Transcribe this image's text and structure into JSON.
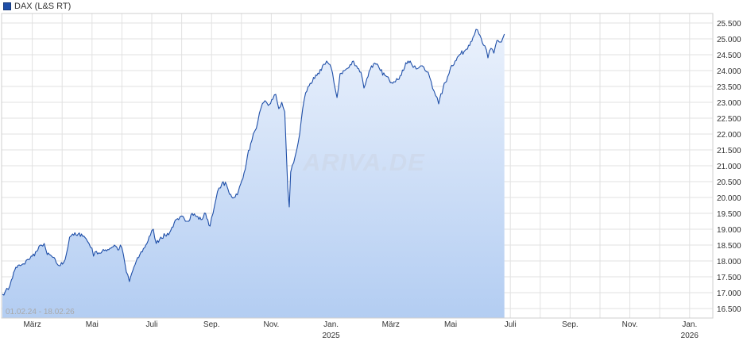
{
  "legend": {
    "label": "DAX (L&S RT)",
    "color": "#1f4fa8"
  },
  "range_text": "01.02.24 - 18.02.26",
  "watermark": "ARIVA.DE",
  "chart_data": {
    "type": "area",
    "series": [
      {
        "name": "DAX (L&S RT)",
        "color": "#1f4fa8",
        "points": [
          [
            0.0,
            16950
          ],
          [
            0.1,
            17050
          ],
          [
            0.2,
            17100
          ],
          [
            0.3,
            17400
          ],
          [
            0.45,
            17800
          ],
          [
            0.6,
            17850
          ],
          [
            0.75,
            17900
          ],
          [
            0.85,
            18050
          ],
          [
            1.0,
            18150
          ],
          [
            1.15,
            18300
          ],
          [
            1.3,
            18500
          ],
          [
            1.4,
            18550
          ],
          [
            1.5,
            18200
          ],
          [
            1.65,
            18150
          ],
          [
            1.8,
            17950
          ],
          [
            1.9,
            17850
          ],
          [
            2.05,
            17950
          ],
          [
            2.15,
            18250
          ],
          [
            2.25,
            18750
          ],
          [
            2.35,
            18850
          ],
          [
            2.5,
            18800
          ],
          [
            2.65,
            18850
          ],
          [
            2.8,
            18700
          ],
          [
            2.9,
            18550
          ],
          [
            3.0,
            18400
          ],
          [
            3.05,
            18150
          ],
          [
            3.15,
            18300
          ],
          [
            3.3,
            18250
          ],
          [
            3.45,
            18350
          ],
          [
            3.6,
            18400
          ],
          [
            3.75,
            18500
          ],
          [
            3.9,
            18350
          ],
          [
            3.95,
            18500
          ],
          [
            4.05,
            18200
          ],
          [
            4.15,
            17650
          ],
          [
            4.25,
            17350
          ],
          [
            4.4,
            17800
          ],
          [
            4.6,
            18200
          ],
          [
            4.8,
            18500
          ],
          [
            4.95,
            18800
          ],
          [
            5.05,
            19000
          ],
          [
            5.15,
            18550
          ],
          [
            5.3,
            18750
          ],
          [
            5.45,
            18800
          ],
          [
            5.6,
            18900
          ],
          [
            5.75,
            19200
          ],
          [
            5.9,
            19300
          ],
          [
            6.05,
            19400
          ],
          [
            6.2,
            19250
          ],
          [
            6.35,
            19500
          ],
          [
            6.5,
            19400
          ],
          [
            6.65,
            19300
          ],
          [
            6.8,
            19500
          ],
          [
            6.95,
            19100
          ],
          [
            7.05,
            19500
          ],
          [
            7.15,
            19950
          ],
          [
            7.25,
            20300
          ],
          [
            7.35,
            20450
          ],
          [
            7.5,
            20400
          ],
          [
            7.6,
            20100
          ],
          [
            7.75,
            20000
          ],
          [
            7.9,
            20200
          ],
          [
            8.05,
            20600
          ],
          [
            8.2,
            21300
          ],
          [
            8.35,
            21800
          ],
          [
            8.45,
            22100
          ],
          [
            8.55,
            22400
          ],
          [
            8.65,
            22800
          ],
          [
            8.75,
            23000
          ],
          [
            8.9,
            22900
          ],
          [
            9.05,
            23100
          ],
          [
            9.15,
            23250
          ],
          [
            9.25,
            22800
          ],
          [
            9.35,
            23000
          ],
          [
            9.45,
            22700
          ],
          [
            9.5,
            21500
          ],
          [
            9.55,
            20300
          ],
          [
            9.6,
            19700
          ],
          [
            9.65,
            20800
          ],
          [
            9.75,
            21100
          ],
          [
            9.85,
            21500
          ],
          [
            9.95,
            22000
          ],
          [
            10.05,
            22800
          ],
          [
            10.15,
            23300
          ],
          [
            10.3,
            23600
          ],
          [
            10.45,
            23750
          ],
          [
            10.6,
            23900
          ],
          [
            10.75,
            24200
          ],
          [
            10.85,
            24300
          ],
          [
            11.0,
            24100
          ],
          [
            11.1,
            23600
          ],
          [
            11.2,
            23150
          ],
          [
            11.3,
            23900
          ],
          [
            11.45,
            24000
          ],
          [
            11.6,
            24100
          ],
          [
            11.75,
            24300
          ],
          [
            11.85,
            24150
          ],
          [
            12.0,
            23950
          ],
          [
            12.1,
            23450
          ],
          [
            12.2,
            23750
          ],
          [
            12.35,
            24150
          ],
          [
            12.5,
            24200
          ],
          [
            12.65,
            24000
          ],
          [
            12.8,
            23850
          ],
          [
            12.95,
            23700
          ],
          [
            13.1,
            23650
          ],
          [
            13.2,
            23750
          ],
          [
            13.35,
            23850
          ],
          [
            13.5,
            24250
          ],
          [
            13.65,
            24300
          ],
          [
            13.75,
            24100
          ],
          [
            13.85,
            24050
          ],
          [
            13.95,
            24100
          ],
          [
            14.05,
            24150
          ],
          [
            14.15,
            24000
          ],
          [
            14.25,
            23950
          ],
          [
            14.35,
            23650
          ],
          [
            14.45,
            23350
          ],
          [
            14.55,
            23150
          ],
          [
            14.6,
            22950
          ],
          [
            14.75,
            23450
          ],
          [
            14.9,
            23800
          ],
          [
            15.0,
            24100
          ],
          [
            15.15,
            24300
          ],
          [
            15.3,
            24500
          ],
          [
            15.45,
            24600
          ],
          [
            15.6,
            24800
          ],
          [
            15.75,
            25050
          ],
          [
            15.85,
            25300
          ],
          [
            15.95,
            25150
          ],
          [
            16.1,
            24800
          ],
          [
            16.2,
            24650
          ],
          [
            16.25,
            24400
          ],
          [
            16.35,
            24700
          ],
          [
            16.45,
            24550
          ],
          [
            16.55,
            24950
          ],
          [
            16.7,
            24900
          ],
          [
            16.8,
            25150
          ]
        ]
      }
    ],
    "x_axis": {
      "ticks": [
        {
          "m": 1,
          "label": "März"
        },
        {
          "m": 3,
          "label": "Mai"
        },
        {
          "m": 5,
          "label": "Juli"
        },
        {
          "m": 7,
          "label": "Sep."
        },
        {
          "m": 9,
          "label": "Nov."
        },
        {
          "m": 11,
          "label": "Jan.",
          "sublabel": "2025"
        },
        {
          "m": 13,
          "label": "März"
        },
        {
          "m": 15,
          "label": "Mai"
        },
        {
          "m": 17,
          "label": "Juli"
        },
        {
          "m": 19,
          "label": "Sep."
        },
        {
          "m": 21,
          "label": "Nov."
        },
        {
          "m": 23,
          "label": "Jan.",
          "sublabel": "2026"
        }
      ],
      "range": [
        "01.02.24",
        "18.02.26"
      ]
    },
    "y_axis": {
      "min": 16200,
      "max": 25800,
      "ticks": [
        {
          "value": 16500,
          "label": "16.500"
        },
        {
          "value": 17000,
          "label": "17.000"
        },
        {
          "value": 17500,
          "label": "17.500"
        },
        {
          "value": 18000,
          "label": "18.000"
        },
        {
          "value": 18500,
          "label": "18.500"
        },
        {
          "value": 19000,
          "label": "19.000"
        },
        {
          "value": 19500,
          "label": "19.500"
        },
        {
          "value": 20000,
          "label": "20.000"
        },
        {
          "value": 20500,
          "label": "20.500"
        },
        {
          "value": 21000,
          "label": "21.000"
        },
        {
          "value": 21500,
          "label": "21.500"
        },
        {
          "value": 22000,
          "label": "22.000"
        },
        {
          "value": 22500,
          "label": "22.500"
        },
        {
          "value": 23000,
          "label": "23.000"
        },
        {
          "value": 23500,
          "label": "23.500"
        },
        {
          "value": 24000,
          "label": "24.000"
        },
        {
          "value": 24500,
          "label": "24.500"
        },
        {
          "value": 25000,
          "label": "25.000"
        },
        {
          "value": 25500,
          "label": "25.500"
        }
      ]
    },
    "grid": true,
    "legend_position": "top-left"
  }
}
